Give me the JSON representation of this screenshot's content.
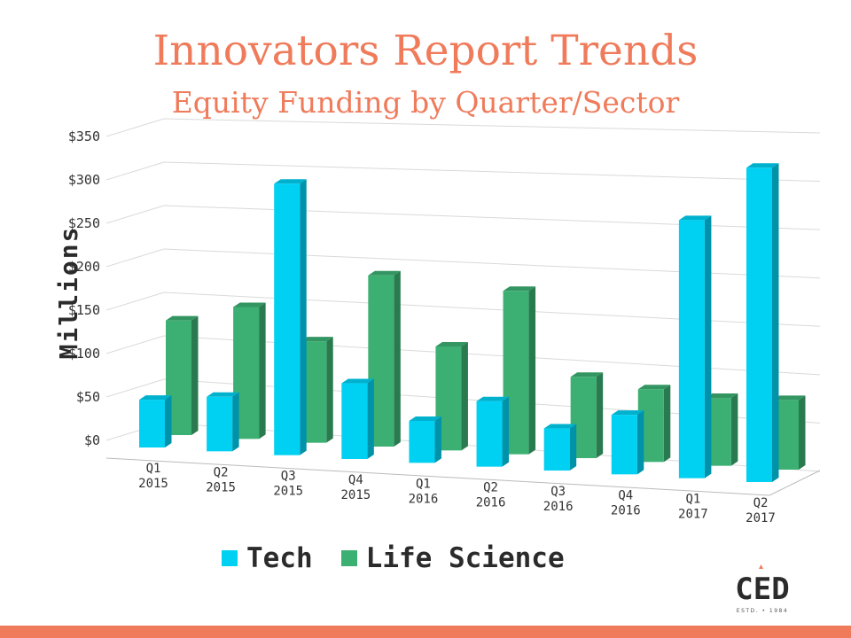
{
  "header": {
    "title": "Innovators Report Trends",
    "subtitle": "Equity Funding by Quarter/Sector"
  },
  "logo": {
    "text": "CED",
    "tagline": "ESTD. • 1984"
  },
  "colors": {
    "tech": "#00d0f2",
    "life_science": "#3caf72",
    "accent": "#ef7b5b"
  },
  "chart_data": {
    "type": "bar",
    "title": "Innovators Report Trends",
    "subtitle": "Equity Funding by Quarter/Sector",
    "ylabel": "Millions",
    "xlabel": "",
    "ylim": [
      0,
      350
    ],
    "yticks": [
      "$0",
      "$50",
      "$100",
      "$150",
      "$200",
      "$250",
      "$300",
      "$350"
    ],
    "grid": true,
    "legend_position": "bottom",
    "categories": [
      {
        "q": "Q1",
        "y": "2015"
      },
      {
        "q": "Q2",
        "y": "2015"
      },
      {
        "q": "Q3",
        "y": "2015"
      },
      {
        "q": "Q4",
        "y": "2015"
      },
      {
        "q": "Q1",
        "y": "2016"
      },
      {
        "q": "Q2",
        "y": "2016"
      },
      {
        "q": "Q3",
        "y": "2016"
      },
      {
        "q": "Q4",
        "y": "2016"
      },
      {
        "q": "Q1",
        "y": "2017"
      },
      {
        "q": "Q2",
        "y": "2017"
      }
    ],
    "series": [
      {
        "name": "Tech",
        "values": [
          55,
          62,
          305,
          84,
          46,
          71,
          45,
          63,
          270,
          325
        ]
      },
      {
        "name": "Life Science",
        "values": [
          132,
          150,
          114,
          190,
          114,
          177,
          87,
          77,
          71,
          72
        ]
      }
    ]
  }
}
